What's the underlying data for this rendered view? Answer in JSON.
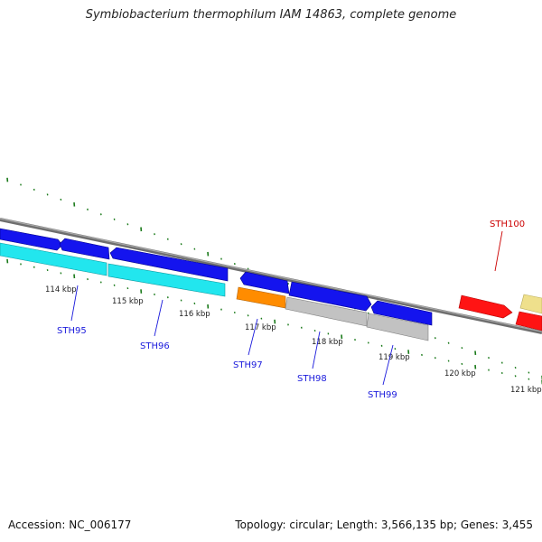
{
  "title": "Symbiobacterium thermophilum IAM 14863, complete genome",
  "footer": {
    "accession": "Accession: NC_006177",
    "summary": "Topology: circular; Length: 3,566,135 bp; Genes: 3,455"
  },
  "scale": {
    "unit": "kbp",
    "labels": [
      {
        "kbp": 114,
        "text": "114 kbp"
      },
      {
        "kbp": 115,
        "text": "115 kbp"
      },
      {
        "kbp": 116,
        "text": "116 kbp"
      },
      {
        "kbp": 117,
        "text": "117 kbp"
      },
      {
        "kbp": 118,
        "text": "118 kbp"
      },
      {
        "kbp": 119,
        "text": "119 kbp"
      },
      {
        "kbp": 120,
        "text": "120 kbp"
      },
      {
        "kbp": 121,
        "text": "121 kbp"
      }
    ]
  },
  "genes": [
    {
      "label": "STH95",
      "color": "#1a1adc"
    },
    {
      "label": "STH96",
      "color": "#1a1adc"
    },
    {
      "label": "STH97",
      "color": "#1a1adc"
    },
    {
      "label": "STH98",
      "color": "#1a1adc"
    },
    {
      "label": "STH99",
      "color": "#1a1adc"
    },
    {
      "label": "STH100",
      "color": "#cc0000"
    }
  ],
  "colors": {
    "backbone": "#808080",
    "ticks": "#1a7a1a",
    "forward_gene": "#1010ee",
    "reverse_gene": "#1010ee",
    "cyan_feature": "#22e6ee",
    "orange_feature": "#ff8c00",
    "grey_feature": "#c0c0c0",
    "red_gene": "#ff1010",
    "khaki_gene": "#eee08a"
  }
}
